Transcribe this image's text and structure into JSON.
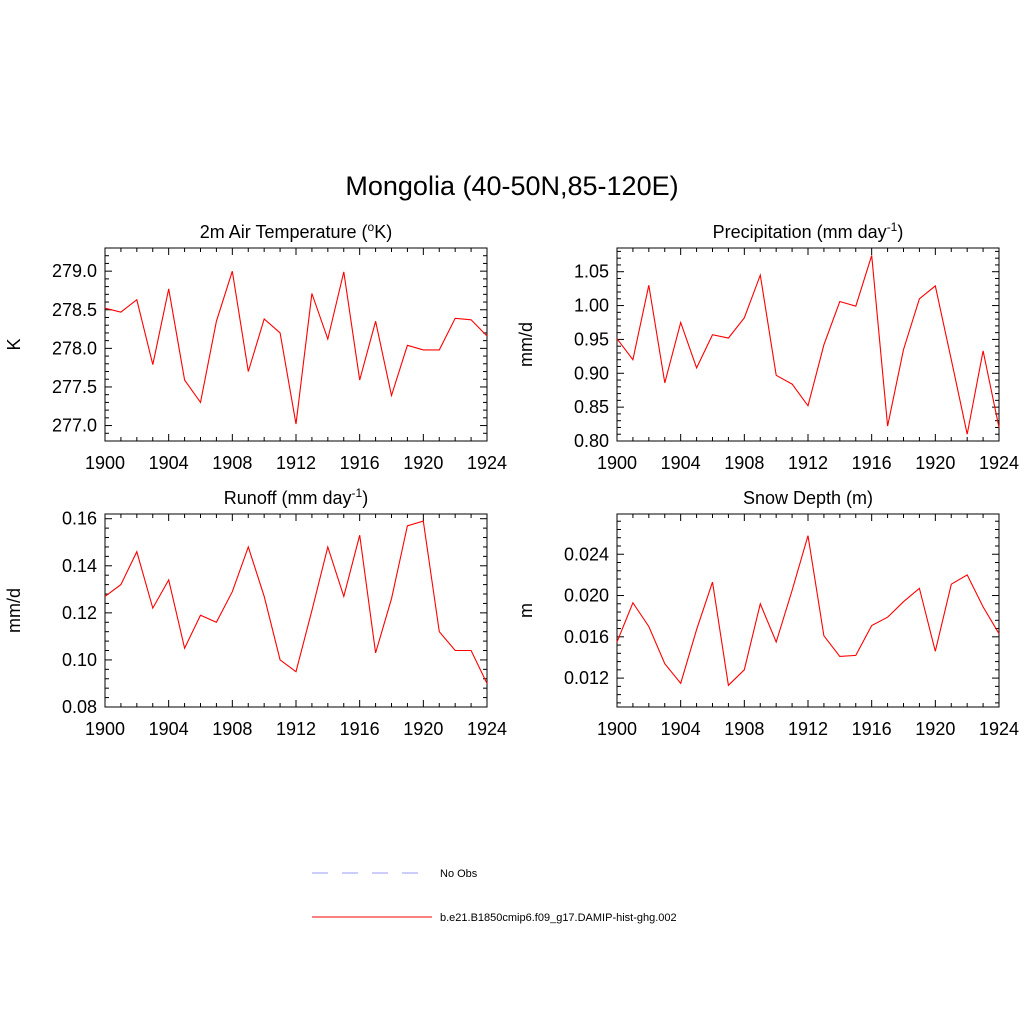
{
  "figure": {
    "title": "Mongolia (40-50N,85-120E)"
  },
  "legend": {
    "placement": "bottom-center",
    "entries": [
      {
        "label": "No Obs",
        "color": "#9999ff",
        "dash": "dashed"
      },
      {
        "label": "b.e21.B1850cmip6.f09_g17.DAMIP-hist-ghg.002",
        "color": "#ff0000",
        "dash": "solid"
      }
    ]
  },
  "chart_data": [
    {
      "type": "line",
      "title": "2m Air Temperature (",
      "title_sup": "o",
      "title_tail": "K)",
      "ylabel": "K",
      "xlim": [
        1900,
        1924
      ],
      "ylim": [
        276.8,
        279.3
      ],
      "xticks": [
        "1900",
        "1904",
        "1908",
        "1912",
        "1916",
        "1920",
        "1924"
      ],
      "yticks": [
        "277.0",
        "277.5",
        "278.0",
        "278.5",
        "279.0"
      ],
      "grid": false,
      "color": "#ff0000",
      "x": [
        1900,
        1901,
        1902,
        1903,
        1904,
        1905,
        1906,
        1907,
        1908,
        1909,
        1910,
        1911,
        1912,
        1913,
        1914,
        1915,
        1916,
        1917,
        1918,
        1919,
        1920,
        1921,
        1922,
        1923,
        1924
      ],
      "values": [
        278.52,
        278.47,
        278.63,
        277.79,
        278.77,
        277.59,
        277.3,
        278.35,
        279.0,
        277.7,
        278.38,
        278.2,
        277.02,
        278.71,
        278.12,
        278.99,
        277.59,
        278.35,
        277.39,
        278.04,
        277.98,
        277.98,
        278.39,
        278.37,
        278.16
      ]
    },
    {
      "type": "line",
      "title": "Precipitation (mm day",
      "title_sup": "-1",
      "title_tail": ")",
      "ylabel": "mm/d",
      "xlim": [
        1900,
        1924
      ],
      "ylim": [
        0.8,
        1.085
      ],
      "xticks": [
        "1900",
        "1904",
        "1908",
        "1912",
        "1916",
        "1920",
        "1924"
      ],
      "yticks": [
        "0.80",
        "0.85",
        "0.90",
        "0.95",
        "1.00",
        "1.05"
      ],
      "grid": false,
      "color": "#ff0000",
      "x": [
        1900,
        1901,
        1902,
        1903,
        1904,
        1905,
        1906,
        1907,
        1908,
        1909,
        1910,
        1911,
        1912,
        1913,
        1914,
        1915,
        1916,
        1917,
        1918,
        1919,
        1920,
        1921,
        1922,
        1923,
        1924
      ],
      "values": [
        0.951,
        0.92,
        1.03,
        0.886,
        0.975,
        0.908,
        0.957,
        0.952,
        0.982,
        1.045,
        0.897,
        0.884,
        0.852,
        0.942,
        1.006,
        0.999,
        1.074,
        0.822,
        0.935,
        1.01,
        1.029,
        0.92,
        0.81,
        0.933,
        0.82
      ]
    },
    {
      "type": "line",
      "title": "Runoff (mm day",
      "title_sup": "-1",
      "title_tail": ")",
      "ylabel": "mm/d",
      "xlim": [
        1900,
        1924
      ],
      "ylim": [
        0.08,
        0.162
      ],
      "xticks": [
        "1900",
        "1904",
        "1908",
        "1912",
        "1916",
        "1920",
        "1924"
      ],
      "yticks": [
        "0.08",
        "0.10",
        "0.12",
        "0.14",
        "0.16"
      ],
      "grid": false,
      "color": "#ff0000",
      "x": [
        1900,
        1901,
        1902,
        1903,
        1904,
        1905,
        1906,
        1907,
        1908,
        1909,
        1910,
        1911,
        1912,
        1913,
        1914,
        1915,
        1916,
        1917,
        1918,
        1919,
        1920,
        1921,
        1922,
        1923,
        1924
      ],
      "values": [
        0.127,
        0.132,
        0.146,
        0.122,
        0.134,
        0.105,
        0.119,
        0.116,
        0.129,
        0.148,
        0.127,
        0.1,
        0.095,
        0.121,
        0.148,
        0.127,
        0.153,
        0.103,
        0.126,
        0.157,
        0.159,
        0.112,
        0.104,
        0.104,
        0.09
      ]
    },
    {
      "type": "line",
      "title": "Snow Depth (m)",
      "title_sup": "",
      "title_tail": "",
      "ylabel": "m",
      "xlim": [
        1900,
        1924
      ],
      "ylim": [
        0.0092,
        0.0279
      ],
      "xticks": [
        "1900",
        "1904",
        "1908",
        "1912",
        "1916",
        "1920",
        "1924"
      ],
      "yticks": [
        "0.012",
        "0.016",
        "0.020",
        "0.024"
      ],
      "grid": false,
      "color": "#ff0000",
      "x": [
        1900,
        1901,
        1902,
        1903,
        1904,
        1905,
        1906,
        1907,
        1908,
        1909,
        1910,
        1911,
        1912,
        1913,
        1914,
        1915,
        1916,
        1917,
        1918,
        1919,
        1920,
        1921,
        1922,
        1923,
        1924
      ],
      "values": [
        0.0155,
        0.0193,
        0.017,
        0.0134,
        0.0115,
        0.0167,
        0.0213,
        0.0113,
        0.0128,
        0.0192,
        0.0155,
        0.0205,
        0.0258,
        0.0161,
        0.0141,
        0.0142,
        0.0171,
        0.0179,
        0.0194,
        0.0207,
        0.0146,
        0.0211,
        0.022,
        0.0189,
        0.0163
      ]
    }
  ]
}
